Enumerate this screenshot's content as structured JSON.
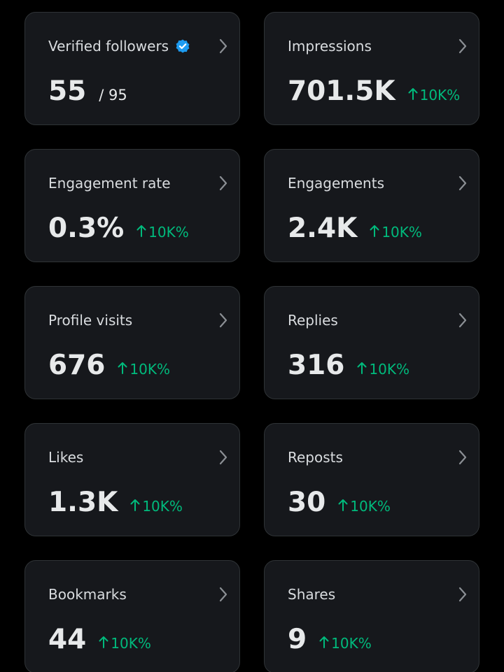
{
  "cards": [
    {
      "label": "Verified followers",
      "value": "55",
      "total": "/ 95"
    },
    {
      "label": "Impressions",
      "value": "701.5K",
      "change": "10K%"
    },
    {
      "label": "Engagement rate",
      "value": "0.3%",
      "change": "10K%"
    },
    {
      "label": "Engagements",
      "value": "2.4K",
      "change": "10K%"
    },
    {
      "label": "Profile visits",
      "value": "676",
      "change": "10K%"
    },
    {
      "label": "Replies",
      "value": "316",
      "change": "10K%"
    },
    {
      "label": "Likes",
      "value": "1.3K",
      "change": "10K%"
    },
    {
      "label": "Reposts",
      "value": "30",
      "change": "10K%"
    },
    {
      "label": "Bookmarks",
      "value": "44",
      "change": "10K%"
    },
    {
      "label": "Shares",
      "value": "9",
      "change": "10K%"
    }
  ]
}
